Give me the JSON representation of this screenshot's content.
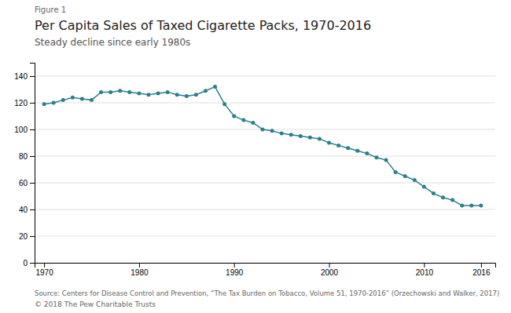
{
  "chart_data": {
    "type": "line",
    "figure_label": "Figure 1",
    "title": "Per Capita Sales of Taxed Cigarette Packs, 1970-2016",
    "subtitle": "Steady decline since early 1980s",
    "source": "Source: Centers for Disease Control and Prevention, “The Tax Burden on Tobacco, Volume 51, 1970-2016” (Orzechowski and Walker, 2017)",
    "copyright": "© 2018 The Pew Charitable Trusts",
    "x": [
      1970,
      1971,
      1972,
      1973,
      1974,
      1975,
      1976,
      1977,
      1978,
      1979,
      1980,
      1981,
      1982,
      1983,
      1984,
      1985,
      1986,
      1987,
      1988,
      1989,
      1990,
      1991,
      1992,
      1993,
      1994,
      1995,
      1996,
      1997,
      1998,
      1999,
      2000,
      2001,
      2002,
      2003,
      2004,
      2005,
      2006,
      2007,
      2008,
      2009,
      2010,
      2011,
      2012,
      2013,
      2014,
      2015,
      2016
    ],
    "values": [
      119,
      120,
      122,
      124,
      123,
      122,
      128,
      128,
      129,
      128,
      127,
      126,
      127,
      128,
      126,
      125,
      126,
      129,
      132,
      119,
      110,
      107,
      105,
      100,
      99,
      97,
      96,
      95,
      94,
      93,
      90,
      88,
      86,
      84,
      82,
      79,
      77,
      68,
      65,
      62,
      57,
      52,
      49,
      47,
      43,
      43,
      43
    ],
    "color": "#2b7f8e",
    "marker": "circle",
    "xlim": [
      1969.0,
      2017.5
    ],
    "xticks": [
      1970,
      1980,
      1990,
      2000,
      2010,
      2016
    ],
    "ylim": [
      0,
      150
    ],
    "yticks": [
      0,
      20,
      40,
      60,
      80,
      100,
      120,
      140
    ],
    "grid": true
  }
}
